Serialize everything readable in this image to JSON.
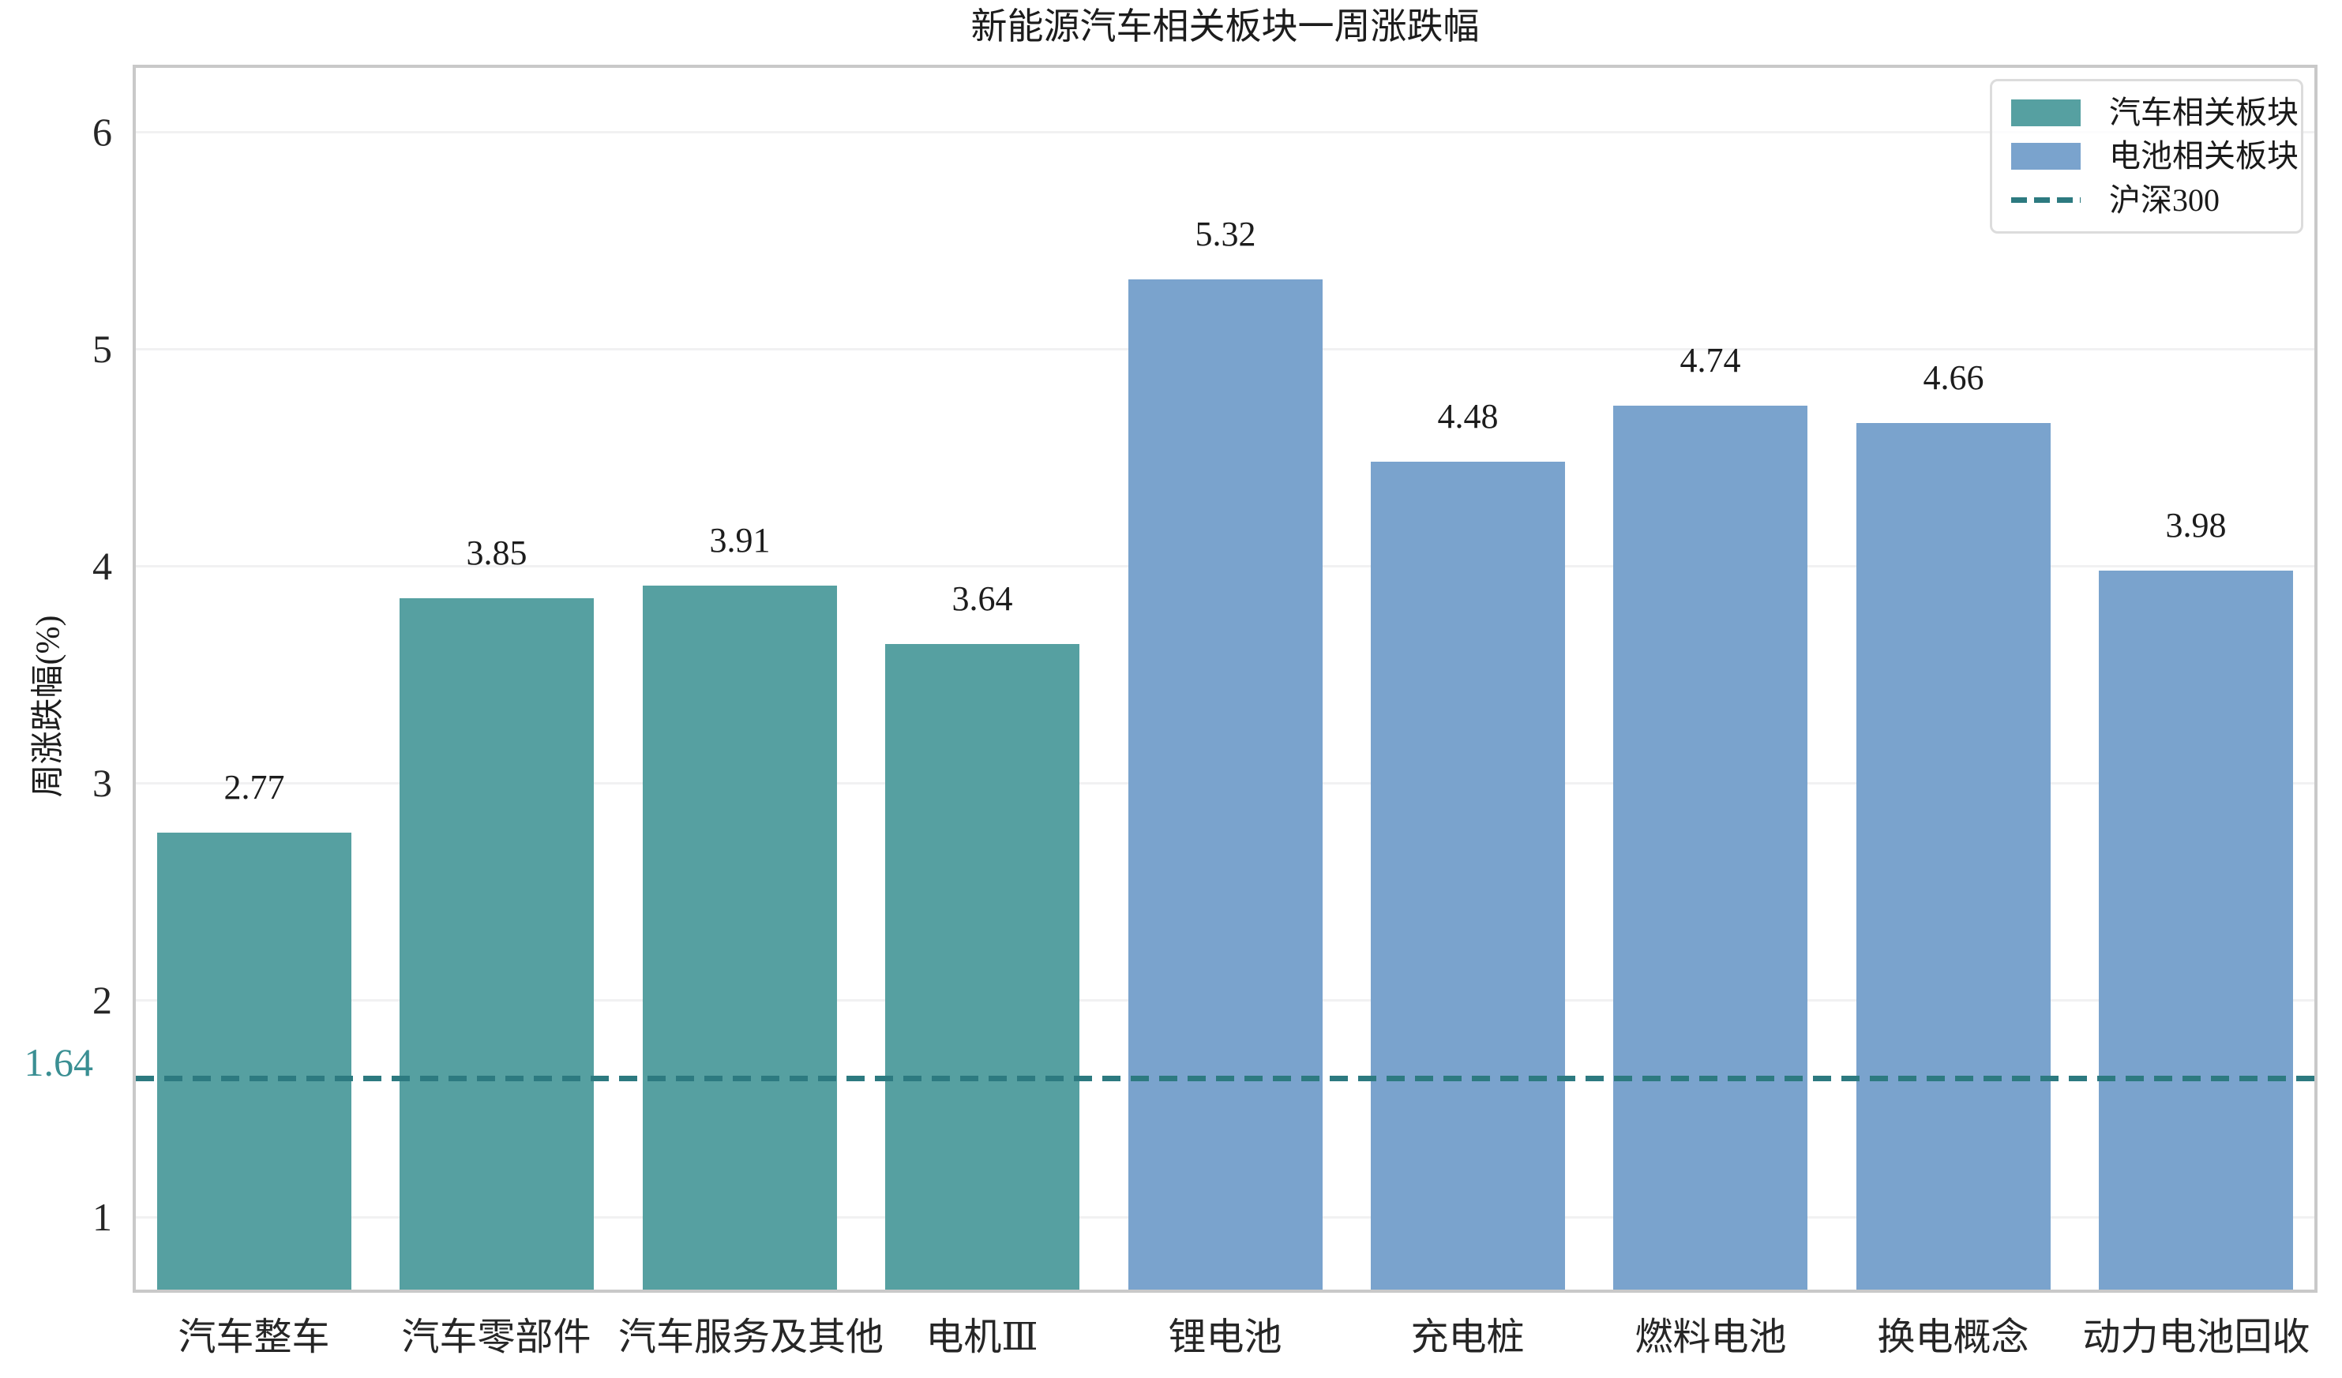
{
  "chart_data": {
    "type": "bar",
    "title": "新能源汽车相关板块一周涨跌幅",
    "xlabel": "",
    "ylabel": "周涨跌幅(%)",
    "categories": [
      "汽车整车",
      "汽车零部件",
      "汽车服务及其他",
      "电机Ⅲ",
      "锂电池",
      "充电桩",
      "燃料电池",
      "换电概念",
      "动力电池回收"
    ],
    "values": [
      2.77,
      3.85,
      3.91,
      3.64,
      5.32,
      4.48,
      4.74,
      4.66,
      3.98
    ],
    "value_labels": [
      "2.77",
      "3.85",
      "3.91",
      "3.64",
      "5.32",
      "4.48",
      "4.74",
      "4.66",
      "3.98"
    ],
    "bar_groups": [
      "auto",
      "auto",
      "auto",
      "auto",
      "battery",
      "battery",
      "battery",
      "battery",
      "battery"
    ],
    "group_colors": {
      "auto": "#56a0a1",
      "battery": "#7aa3cd"
    },
    "yticks": [
      1,
      2,
      3,
      4,
      5,
      6
    ],
    "ylim": [
      0.65,
      6.31
    ],
    "grid": true,
    "reference_line": {
      "label": "沪深300",
      "value": 1.64,
      "value_label": "1.64",
      "color": "#2d7a80",
      "label_color": "#3a8f93"
    },
    "legend": {
      "position": "top-right",
      "entries": [
        {
          "label": "汽车相关板块",
          "type": "swatch",
          "color": "#56a0a1"
        },
        {
          "label": "电池相关板块",
          "type": "swatch",
          "color": "#7aa3cd"
        },
        {
          "label": "沪深300",
          "type": "dashed-line",
          "color": "#2d7a80"
        }
      ]
    }
  }
}
